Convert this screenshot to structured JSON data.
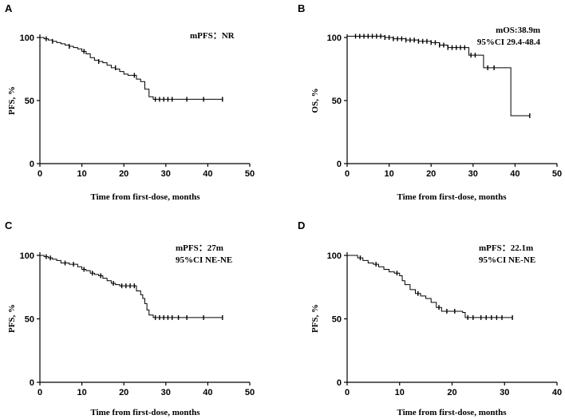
{
  "chart_data": [
    {
      "type": "line",
      "panel": "A",
      "ylabel": "PFS, %",
      "xlabel": "Time from first-dose, months",
      "xlim": [
        0,
        50
      ],
      "xticks": [
        "0",
        "10",
        "20",
        "30",
        "40",
        "50"
      ],
      "ylim": [
        0,
        100
      ],
      "yticks": [
        "0",
        "50",
        "100"
      ],
      "annotation": [
        "mPFS：NR"
      ],
      "series": [
        {
          "name": "PFS",
          "x": [
            0,
            1,
            2,
            3,
            4,
            5,
            6,
            7,
            8,
            9,
            10,
            11,
            12,
            13,
            14,
            15,
            16,
            17,
            18,
            19,
            20,
            21,
            22,
            23,
            24,
            25,
            26,
            27,
            43.5
          ],
          "y": [
            100,
            99,
            98,
            97,
            96,
            95,
            94,
            93,
            92,
            91,
            89,
            87,
            84,
            82,
            81,
            80,
            78,
            76,
            75,
            73,
            71,
            70,
            70,
            67,
            65,
            59,
            53,
            51,
            51
          ],
          "censor_x": [
            1.5,
            3,
            7,
            10.5,
            14,
            18,
            22.5,
            27.5,
            28.5,
            29.5,
            30.5,
            31.5,
            35,
            39,
            43.5
          ],
          "censor_y": [
            99,
            97,
            93,
            89,
            81,
            76,
            70,
            51,
            51,
            51,
            51,
            51,
            51,
            51,
            51
          ]
        }
      ]
    },
    {
      "type": "line",
      "panel": "B",
      "ylabel": "OS, %",
      "xlabel": "Time from first-dose, months",
      "xlim": [
        0,
        50
      ],
      "xticks": [
        "0",
        "10",
        "20",
        "30",
        "40",
        "50"
      ],
      "ylim": [
        0,
        100
      ],
      "yticks": [
        "0",
        "50",
        "100"
      ],
      "annotation": [
        "mOS:38.9m",
        "95%CI 29.4-48.4"
      ],
      "series": [
        {
          "name": "OS",
          "x": [
            0,
            5,
            9,
            11,
            14,
            17,
            20,
            22,
            24,
            29,
            32.5,
            39,
            43.5
          ],
          "y": [
            101,
            101,
            100,
            99,
            98,
            97,
            96,
            94,
            92,
            86,
            76,
            38,
            38
          ],
          "censor_x": [
            2,
            3,
            4,
            5,
            6,
            7,
            8,
            9,
            10,
            11,
            12,
            13,
            14,
            15,
            16,
            17,
            18,
            19,
            20,
            21,
            22,
            23,
            24,
            25,
            26,
            27,
            28,
            29.5,
            30.5,
            33.5,
            35,
            43.5
          ],
          "censor_y": [
            101,
            101,
            101,
            101,
            101,
            101,
            101,
            100,
            100,
            99,
            99,
            99,
            98,
            98,
            98,
            97,
            97,
            97,
            96,
            96,
            94,
            94,
            92,
            92,
            92,
            92,
            92,
            86,
            86,
            76,
            76,
            38
          ]
        }
      ]
    },
    {
      "type": "line",
      "panel": "C",
      "ylabel": "PFS, %",
      "xlabel": "Time from first-dose, months",
      "xlim": [
        0,
        50
      ],
      "xticks": [
        "0",
        "10",
        "20",
        "30",
        "40",
        "50"
      ],
      "ylim": [
        0,
        100
      ],
      "yticks": [
        "0",
        "50",
        "100"
      ],
      "annotation": [
        "mPFS：27m",
        "95%CI NE-NE"
      ],
      "series": [
        {
          "name": "PFS",
          "x": [
            0,
            1,
            2,
            3,
            4,
            5,
            7,
            9,
            10,
            11,
            12,
            13,
            14,
            15,
            16,
            17,
            18,
            19,
            23,
            24,
            24.5,
            25,
            25.5,
            26,
            27,
            43.5
          ],
          "y": [
            100,
            99,
            98,
            97,
            96,
            94,
            93,
            91,
            89,
            88,
            86,
            85,
            84,
            82,
            80,
            78,
            77,
            76,
            72,
            69,
            66,
            62,
            57,
            53,
            51,
            51
          ],
          "censor_x": [
            1.5,
            2.5,
            6,
            8,
            10.5,
            12.5,
            14.5,
            17.5,
            19.5,
            20.5,
            21.5,
            22.5,
            27.5,
            28.5,
            29.5,
            30.5,
            31.5,
            33,
            35,
            39,
            43.5
          ],
          "censor_y": [
            99,
            98,
            94,
            93,
            89,
            86,
            84,
            78,
            76,
            76,
            76,
            76,
            51,
            51,
            51,
            51,
            51,
            51,
            51,
            51,
            51
          ]
        }
      ]
    },
    {
      "type": "line",
      "panel": "D",
      "ylabel": "PFS, %",
      "xlabel": "Time from first-dose, months",
      "xlim": [
        0,
        40
      ],
      "xticks": [
        "0",
        "10",
        "20",
        "30",
        "40"
      ],
      "ylim": [
        0,
        100
      ],
      "yticks": [
        "0",
        "50",
        "100"
      ],
      "annotation": [
        "mPFS：22.1m",
        "95%CI NE-NE"
      ],
      "series": [
        {
          "name": "PFS",
          "x": [
            0,
            2,
            3,
            4,
            5,
            6,
            7,
            8,
            9,
            10,
            10.5,
            11,
            12,
            13,
            14,
            15,
            16,
            17,
            18,
            22,
            22.5,
            31.5
          ],
          "y": [
            100,
            98,
            96,
            94,
            93,
            91,
            89,
            87,
            86,
            84,
            80,
            77,
            73,
            70,
            68,
            66,
            63,
            59,
            56,
            55,
            51,
            51
          ],
          "censor_x": [
            2.5,
            5.5,
            9.5,
            13.5,
            17.5,
            19,
            20.5,
            23,
            24,
            25.5,
            26.5,
            27.5,
            28.5,
            29.5,
            31.5
          ],
          "censor_y": [
            98,
            93,
            86,
            70,
            59,
            56,
            56,
            51,
            51,
            51,
            51,
            51,
            51,
            51,
            51
          ]
        }
      ]
    }
  ]
}
